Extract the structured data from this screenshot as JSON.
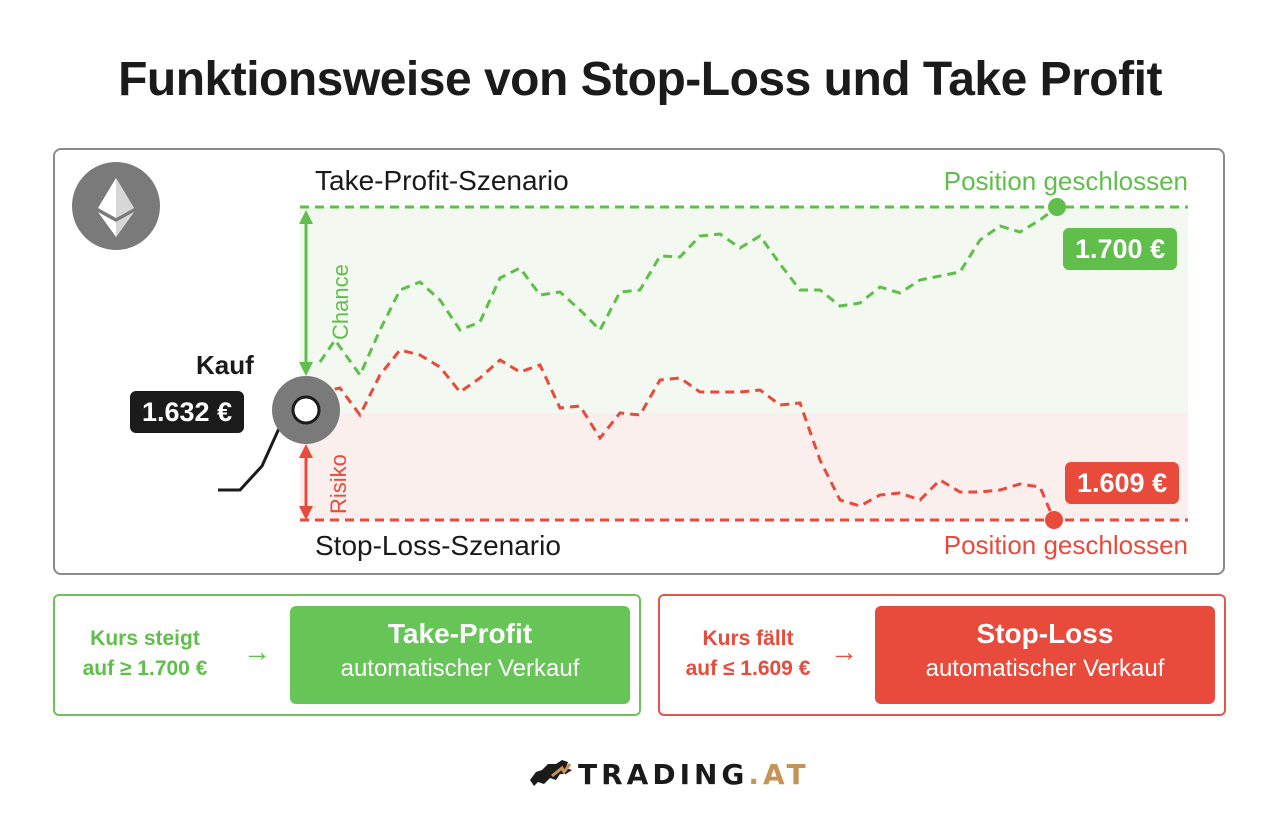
{
  "title": "Funktionsweise von Stop-Loss und Take Profit",
  "diagram": {
    "take_profit_label": "Take-Profit-Szenario",
    "stop_loss_label": "Stop-Loss-Szenario",
    "tp_closed_label": "Position geschlossen",
    "sl_closed_label": "Position geschlossen",
    "tp_price": "1.700 €",
    "sl_price": "1.609 €",
    "buy_label": "Kauf",
    "buy_price": "1.632 €",
    "chance_label": "Chance",
    "risk_label": "Risiko",
    "crypto_icon": "ethereum-icon"
  },
  "boxes": {
    "take_profit": {
      "condition_line1": "Kurs steigt",
      "condition_line2": "auf ≥ 1.700 €",
      "arrow": "→",
      "action_title": "Take-Profit",
      "action_sub": "automatischer Verkauf"
    },
    "stop_loss": {
      "condition_line1": "Kurs fällt",
      "condition_line2": "auf ≤ 1.609 €",
      "arrow": "→",
      "action_title": "Stop-Loss",
      "action_sub": "automatischer Verkauf"
    }
  },
  "logo": {
    "text_main": "TRADING",
    "text_dot": ".AT"
  },
  "colors": {
    "green": "#5fbf4a",
    "red": "#e84a3b",
    "dark": "#1b1b1b",
    "green_zone": "#f3f8f0",
    "red_zone": "#fbefee",
    "logo_accent": "#c49355"
  }
}
